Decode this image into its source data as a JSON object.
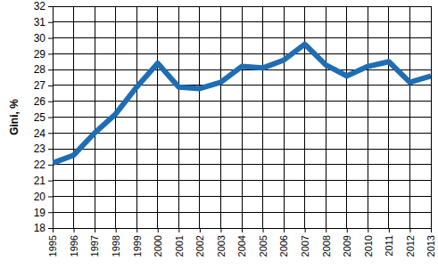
{
  "chart_data": {
    "type": "line",
    "y_label": "Gini, %",
    "x": [
      1995,
      1996,
      1997,
      1998,
      1999,
      2000,
      2001,
      2002,
      2003,
      2004,
      2005,
      2006,
      2007,
      2008,
      2009,
      2010,
      2011,
      2012,
      2013
    ],
    "values": [
      22.1,
      22.6,
      24.0,
      25.2,
      26.9,
      28.4,
      26.9,
      26.8,
      27.2,
      28.2,
      28.1,
      28.6,
      29.6,
      28.3,
      27.6,
      28.2,
      28.5,
      27.2,
      27.6
    ],
    "color": "#1f6db3",
    "xlim": [
      1995,
      2013
    ],
    "xticks": [
      1995,
      1996,
      1997,
      1998,
      1999,
      2000,
      2001,
      2002,
      2003,
      2004,
      2005,
      2006,
      2007,
      2008,
      2009,
      2010,
      2011,
      2012,
      2013
    ],
    "ylim": [
      18,
      32
    ],
    "yticks": [
      18,
      19,
      20,
      21,
      22,
      23,
      24,
      25,
      26,
      27,
      28,
      29,
      30,
      31,
      32
    ],
    "grid": true
  }
}
